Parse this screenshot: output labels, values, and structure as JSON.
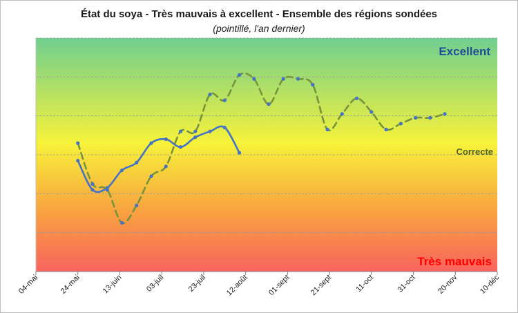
{
  "chart_data": {
    "type": "line",
    "title": "État du soya - Très mauvais à excellent - Ensemble des régions sondées",
    "subtitle": "(pointillé, l'an dernier)",
    "xlabel": "",
    "ylabel": "",
    "x_ticks": [
      "04-mai",
      "24-mai",
      "13-juin",
      "03-juil",
      "23-juil",
      "12-août",
      "01-sept",
      "21-sept",
      "11-oct",
      "31-oct",
      "20-nov",
      "10-déc"
    ],
    "xlim": [
      "2024-05-04",
      "2024-12-10"
    ],
    "ylim": [
      0,
      6
    ],
    "grid": true,
    "zones": {
      "top": {
        "label": "Excellent",
        "color": "#1f4e9c"
      },
      "middle": {
        "label": "Correcte",
        "color": "#4f6228"
      },
      "bottom": {
        "label": "Très mauvais",
        "color": "#ff0000"
      }
    },
    "background_gradient": [
      "#6fcf8f",
      "#f7f23a",
      "#f9a040",
      "#f7645f"
    ],
    "series": [
      {
        "style": "solid",
        "color": "#4472c4",
        "points": [
          {
            "x": "2024-05-24",
            "y": 2.85
          },
          {
            "x": "2024-05-31",
            "y": 2.1
          },
          {
            "x": "2024-06-07",
            "y": 2.15
          },
          {
            "x": "2024-06-14",
            "y": 2.6
          },
          {
            "x": "2024-06-21",
            "y": 2.8
          },
          {
            "x": "2024-06-28",
            "y": 3.3
          },
          {
            "x": "2024-07-05",
            "y": 3.4
          },
          {
            "x": "2024-07-12",
            "y": 3.2
          },
          {
            "x": "2024-07-19",
            "y": 3.45
          },
          {
            "x": "2024-07-26",
            "y": 3.6
          },
          {
            "x": "2024-08-02",
            "y": 3.7
          },
          {
            "x": "2024-08-09",
            "y": 3.05
          }
        ]
      },
      {
        "style": "dashed",
        "color": "#76933c",
        "points": [
          {
            "x": "2024-05-24",
            "y": 3.3
          },
          {
            "x": "2024-05-31",
            "y": 2.25
          },
          {
            "x": "2024-06-07",
            "y": 2.1
          },
          {
            "x": "2024-06-14",
            "y": 1.25
          },
          {
            "x": "2024-06-21",
            "y": 1.7
          },
          {
            "x": "2024-06-28",
            "y": 2.45
          },
          {
            "x": "2024-07-05",
            "y": 2.7
          },
          {
            "x": "2024-07-12",
            "y": 3.6
          },
          {
            "x": "2024-07-19",
            "y": 3.6
          },
          {
            "x": "2024-07-26",
            "y": 4.55
          },
          {
            "x": "2024-08-02",
            "y": 4.4
          },
          {
            "x": "2024-08-09",
            "y": 5.05
          },
          {
            "x": "2024-08-16",
            "y": 4.95
          },
          {
            "x": "2024-08-23",
            "y": 4.3
          },
          {
            "x": "2024-08-30",
            "y": 4.95
          },
          {
            "x": "2024-09-06",
            "y": 4.95
          },
          {
            "x": "2024-09-13",
            "y": 4.8
          },
          {
            "x": "2024-09-20",
            "y": 3.65
          },
          {
            "x": "2024-09-27",
            "y": 4.05
          },
          {
            "x": "2024-10-04",
            "y": 4.45
          },
          {
            "x": "2024-10-11",
            "y": 4.1
          },
          {
            "x": "2024-10-18",
            "y": 3.65
          },
          {
            "x": "2024-10-25",
            "y": 3.8
          },
          {
            "x": "2024-11-01",
            "y": 3.95
          },
          {
            "x": "2024-11-08",
            "y": 3.95
          },
          {
            "x": "2024-11-15",
            "y": 4.05
          }
        ]
      }
    ]
  }
}
